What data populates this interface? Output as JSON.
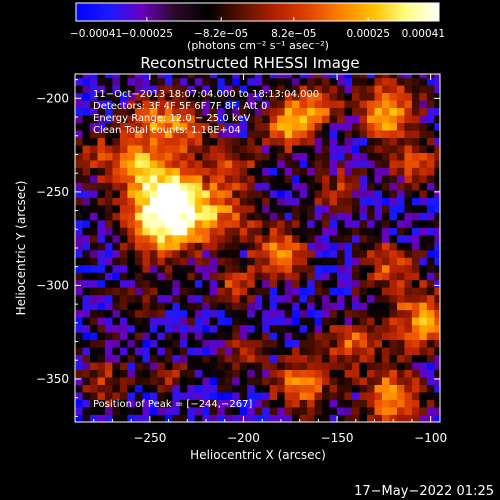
{
  "chart_data": {
    "type": "heatmap",
    "title": "Reconstructed RHESSI Image",
    "xlabel": "Heliocentric X (arcsec)",
    "ylabel": "Heliocentric Y (arcsec)",
    "xlim": [
      -290,
      -95
    ],
    "ylim": [
      -373,
      -187
    ],
    "xticks": [
      -250,
      -200,
      -150,
      -100
    ],
    "yticks": [
      -200,
      -250,
      -300,
      -350
    ],
    "xtick_labels": [
      "−250",
      "−200",
      "−150",
      "−100"
    ],
    "ytick_labels": [
      "−200",
      "−250",
      "−300",
      "−350"
    ],
    "colorbar": {
      "min": -0.00041,
      "max": 0.00041,
      "ticks": [
        -0.00041,
        -0.00025,
        -8.2e-05,
        8.2e-05,
        0.00025,
        0.00041
      ],
      "tick_labels": [
        "−0.00041",
        "−0.00025",
        "−8.2e−05",
        "8.2e−05",
        "0.00025",
        "0.00041"
      ],
      "unit_label": "(photons cm⁻² s⁻¹ asec⁻²)",
      "colors": [
        "#0000ff",
        "#1a1aff",
        "#6a00c0",
        "#2a0a2a",
        "#000000",
        "#5a1000",
        "#b02000",
        "#e04000",
        "#ff8000",
        "#ffc000",
        "#ffff80",
        "#ffffff"
      ]
    },
    "annotations": [
      "11−Oct−2013 18:07:04.000 to 18:13:04.000",
      "Detectors: 3F 4F 5F 6F 7F 8F, Att 0",
      "Energy Range: 12.0 − 25.0 keV",
      "Clean     Total counts: 1.18E+04"
    ],
    "peak_label": "Position of Peak = [−244,−267]",
    "peak": [
      -244,
      -267
    ],
    "grid": false,
    "legend": "none"
  },
  "footer": {
    "date": "17−May−2022 01:25"
  }
}
